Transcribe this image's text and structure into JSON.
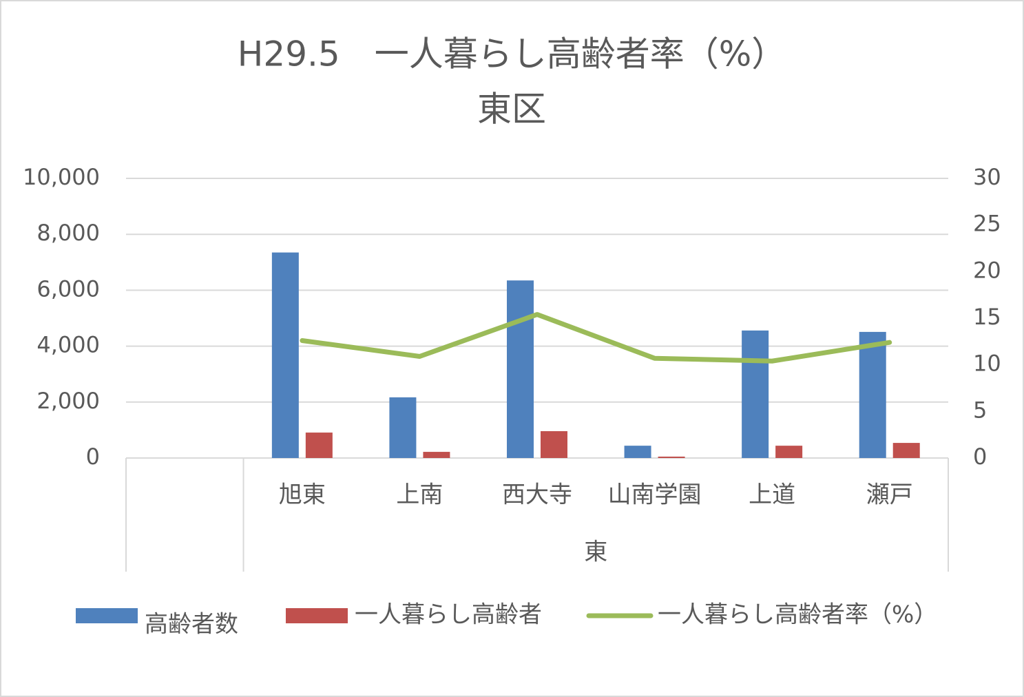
{
  "chart_data": {
    "type": "combo",
    "title": "H29.5　一人暮らし高齢者率（%）",
    "subtitle": "東区",
    "categories": [
      null,
      "旭東",
      "上南",
      "西大寺",
      "山南学園",
      "上道",
      "瀬戸"
    ],
    "category_group": "東",
    "series": [
      {
        "name": "高齢者数",
        "type": "bar",
        "color": "#4f81bd",
        "values": [
          null,
          7350,
          2170,
          6350,
          440,
          4560,
          4510
        ]
      },
      {
        "name": "一人暮らし高齢者",
        "type": "bar",
        "color": "#c0504d",
        "values": [
          null,
          910,
          220,
          960,
          50,
          440,
          540
        ]
      },
      {
        "name": "一人暮らし高齢者率（%）",
        "type": "line",
        "axis": "y2",
        "color": "#9bbb59",
        "values": [
          null,
          12.6,
          10.9,
          15.4,
          10.7,
          10.4,
          12.4
        ]
      }
    ],
    "ylim": [
      0,
      10000
    ],
    "yticks": [
      0,
      {
        "value": 2000,
        "label": "2,000"
      },
      {
        "value": 4000,
        "label": "4,000"
      },
      {
        "value": 6000,
        "label": "6,000"
      },
      {
        "value": 8000,
        "label": "8,000"
      },
      {
        "value": 10000,
        "label": "10,000"
      }
    ],
    "y2lim": [
      0,
      30
    ],
    "y2ticks": [
      0,
      5,
      10,
      15,
      20,
      25,
      30
    ],
    "grid": true,
    "legend": "bottom"
  }
}
